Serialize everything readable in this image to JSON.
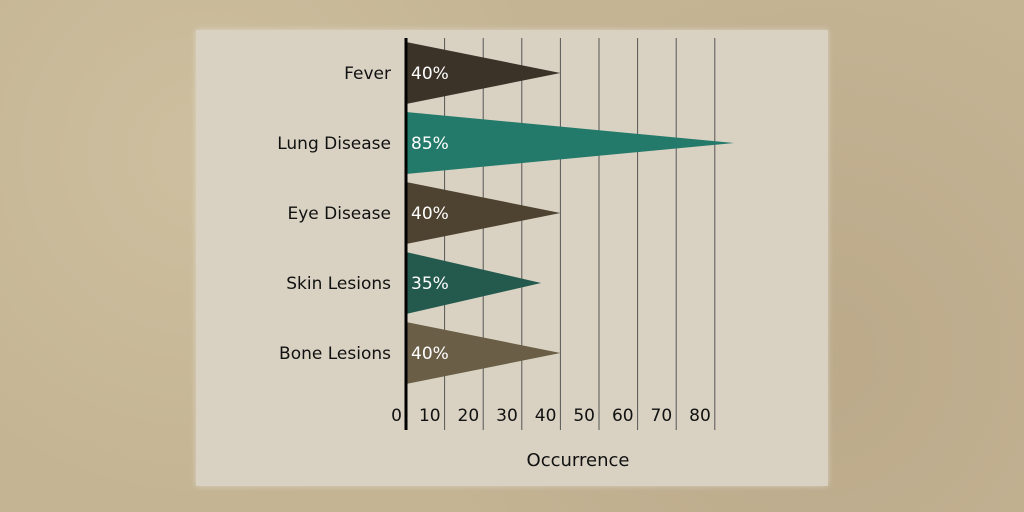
{
  "chart_data": {
    "type": "bar",
    "orientation": "horizontal",
    "bar_shape": "triangle",
    "categories": [
      "Fever",
      "Lung Disease",
      "Eye Disease",
      "Skin Lesions",
      "Bone Lesions"
    ],
    "values": [
      40,
      85,
      40,
      35,
      40
    ],
    "data_labels": [
      "40%",
      "85%",
      "40%",
      "35%",
      "40%"
    ],
    "colors": [
      "#3b3328",
      "#247a6a",
      "#4e4230",
      "#245a4e",
      "#6b5e47"
    ],
    "xlabel": "Occurrence",
    "ylabel": "",
    "xticks": [
      "0",
      "10",
      "20",
      "30",
      "40",
      "50",
      "60",
      "70",
      "80"
    ],
    "xlim": [
      0,
      80
    ],
    "grid": "vertical"
  }
}
